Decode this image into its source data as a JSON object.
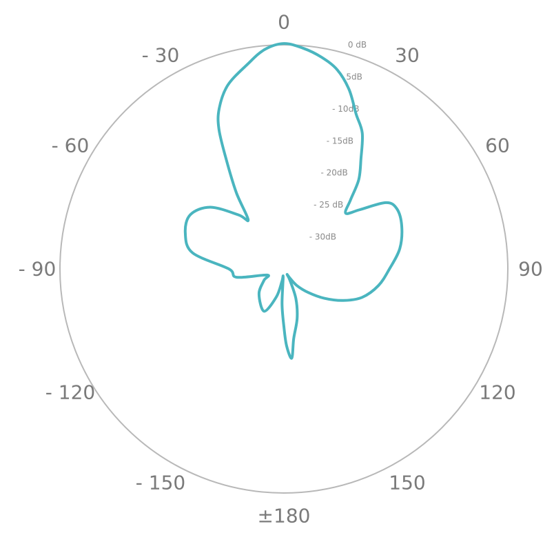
{
  "chart_data": {
    "type": "polar-line",
    "title": "",
    "angle_unit": "degrees",
    "angle_range": [
      -180,
      180
    ],
    "angle_direction": "clockwise, 0 at top",
    "angle_tick_labels": [
      {
        "angle": 0,
        "label": "0"
      },
      {
        "angle": 30,
        "label": "30"
      },
      {
        "angle": 60,
        "label": "60"
      },
      {
        "angle": 90,
        "label": "90"
      },
      {
        "angle": 120,
        "label": "120"
      },
      {
        "angle": 150,
        "label": "150"
      },
      {
        "angle": 180,
        "label": "±180"
      },
      {
        "angle": -150,
        "label": "- 150"
      },
      {
        "angle": -120,
        "label": "- 120"
      },
      {
        "angle": -90,
        "label": "- 90"
      },
      {
        "angle": -60,
        "label": "- 60"
      },
      {
        "angle": -30,
        "label": "- 30"
      }
    ],
    "radial_unit": "dB",
    "radial_range": [
      -35,
      0
    ],
    "radial_tick_labels": [
      {
        "value": 0,
        "label": "0 dB"
      },
      {
        "value": -5,
        "label": "- 5dB"
      },
      {
        "value": -10,
        "label": "- 10dB"
      },
      {
        "value": -15,
        "label": "- 15dB"
      },
      {
        "value": -20,
        "label": "- 20dB"
      },
      {
        "value": -25,
        "label": "- 25 dB"
      },
      {
        "value": -30,
        "label": "- 30dB"
      }
    ],
    "grid": false,
    "series": [
      {
        "color": "#4ab5bf",
        "points": [
          {
            "angle": 0,
            "value": 0.2
          },
          {
            "angle": 5,
            "value": -0.4
          },
          {
            "angle": 10,
            "value": -1.4
          },
          {
            "angle": 15,
            "value": -2.8
          },
          {
            "angle": 20,
            "value": -5.2
          },
          {
            "angle": 25,
            "value": -8.3
          },
          {
            "angle": 30,
            "value": -10.5
          },
          {
            "angle": 35,
            "value": -14.0
          },
          {
            "angle": 40,
            "value": -16.8
          },
          {
            "angle": 44,
            "value": -20.0
          },
          {
            "angle": 48,
            "value": -22.0
          },
          {
            "angle": 52,
            "value": -20.0
          },
          {
            "angle": 57,
            "value": -16.0
          },
          {
            "angle": 62,
            "value": -15.0
          },
          {
            "angle": 70,
            "value": -15.4
          },
          {
            "angle": 80,
            "value": -16.6
          },
          {
            "angle": 90,
            "value": -18.5
          },
          {
            "angle": 100,
            "value": -20.0
          },
          {
            "angle": 110,
            "value": -22.0
          },
          {
            "angle": 118,
            "value": -24.5
          },
          {
            "angle": 126,
            "value": -27.2
          },
          {
            "angle": 134,
            "value": -29.7
          },
          {
            "angle": 142,
            "value": -31.7
          },
          {
            "angle": 147,
            "value": -33.3
          },
          {
            "angle": 150,
            "value": -34.0
          },
          {
            "angle": 152,
            "value": -33.0
          },
          {
            "angle": 158,
            "value": -30.0
          },
          {
            "angle": 165,
            "value": -27.0
          },
          {
            "angle": 172,
            "value": -24.0
          },
          {
            "angle": 175,
            "value": -21.0
          },
          {
            "angle": 178,
            "value": -23.0
          },
          {
            "angle": 180,
            "value": -26.0
          },
          {
            "angle": -177,
            "value": -29.5
          },
          {
            "angle": -175,
            "value": -33.7
          },
          {
            "angle": -171,
            "value": -33.0
          },
          {
            "angle": -165,
            "value": -30.5
          },
          {
            "angle": -155,
            "value": -27.7
          },
          {
            "angle": -135,
            "value": -29.5
          },
          {
            "angle": -120,
            "value": -31.4
          },
          {
            "angle": -110,
            "value": -32.2
          },
          {
            "angle": -100,
            "value": -27.5
          },
          {
            "angle": -90,
            "value": -26.4
          },
          {
            "angle": -80,
            "value": -20.5
          },
          {
            "angle": -70,
            "value": -18.6
          },
          {
            "angle": -60,
            "value": -18.1
          },
          {
            "angle": -50,
            "value": -20.0
          },
          {
            "angle": -40,
            "value": -24.0
          },
          {
            "angle": -36,
            "value": -25.5
          },
          {
            "angle": -32,
            "value": -21.0
          },
          {
            "angle": -28,
            "value": -16.0
          },
          {
            "angle": -25,
            "value": -11.0
          },
          {
            "angle": -22,
            "value": -8.0
          },
          {
            "angle": -17,
            "value": -5.0
          },
          {
            "angle": -10,
            "value": -2.5
          },
          {
            "angle": -5,
            "value": -0.6
          }
        ]
      }
    ]
  }
}
